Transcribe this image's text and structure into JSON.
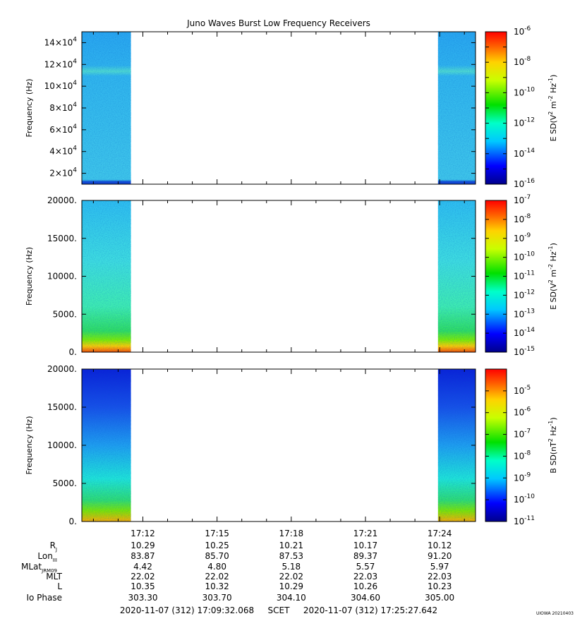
{
  "title": "Juno Waves Burst Low Frequency Receivers",
  "stamp": "UIOWA 20210403",
  "timespan": {
    "start": "2020-11-07 (312) 17:09:32.068",
    "scet": "SCET",
    "end": "2020-11-07 (312) 17:25:27.642"
  },
  "colors": {
    "low": "#0000b0",
    "mid": "#00e000",
    "high": "#ff0000"
  },
  "chart_data": [
    {
      "type": "heatmap",
      "ylabel": "Frequency (Hz)",
      "ylim": [
        10000,
        150000
      ],
      "yticks": [
        {
          "value": 20000,
          "mant": "2",
          "exp": "4"
        },
        {
          "value": 40000,
          "mant": "4",
          "exp": "4"
        },
        {
          "value": 60000,
          "mant": "6",
          "exp": "4"
        },
        {
          "value": 80000,
          "mant": "8",
          "exp": "4"
        },
        {
          "value": 100000,
          "mant": "10",
          "exp": "4"
        },
        {
          "value": 120000,
          "mant": "12",
          "exp": "4"
        },
        {
          "value": 140000,
          "mant": "14",
          "exp": "4"
        }
      ],
      "colorbar": {
        "label": "E SD (V² m⁻² Hz⁻¹)",
        "label_base": "E SD(V",
        "label_unit": "m",
        "label_tail": "Hz",
        "label_exp1": "2",
        "label_exp2": "-2",
        "label_exp3": "-1",
        "range_exp": [
          -16,
          -6
        ],
        "ticks": [
          -6,
          -8,
          -10,
          -12,
          -14,
          -16
        ]
      },
      "data_spans": [
        [
          "17:09:32",
          "17:11:31"
        ],
        [
          "17:23:56",
          "17:25:27"
        ]
      ]
    },
    {
      "type": "heatmap",
      "ylabel": "Frequency (Hz)",
      "ylim": [
        0,
        20000
      ],
      "yticks": [
        {
          "value": 0,
          "label": "0."
        },
        {
          "value": 5000,
          "label": "5000."
        },
        {
          "value": 10000,
          "label": "10000."
        },
        {
          "value": 15000,
          "label": "15000."
        },
        {
          "value": 20000,
          "label": "20000."
        }
      ],
      "colorbar": {
        "label": "E SD (V² m⁻² Hz⁻¹)",
        "label_base": "E SD(V",
        "label_unit": "m",
        "label_tail": "Hz",
        "label_exp1": "2",
        "label_exp2": "-2",
        "label_exp3": "-1",
        "range_exp": [
          -15,
          -7
        ],
        "ticks": [
          -7,
          -8,
          -9,
          -10,
          -11,
          -12,
          -13,
          -14,
          -15
        ]
      },
      "data_spans": [
        [
          "17:09:32",
          "17:11:31"
        ],
        [
          "17:23:56",
          "17:25:27"
        ]
      ]
    },
    {
      "type": "heatmap",
      "ylabel": "Frequency (Hz)",
      "ylim": [
        0,
        20000
      ],
      "yticks": [
        {
          "value": 0,
          "label": "0."
        },
        {
          "value": 5000,
          "label": "5000."
        },
        {
          "value": 10000,
          "label": "10000."
        },
        {
          "value": 15000,
          "label": "15000."
        },
        {
          "value": 20000,
          "label": "20000."
        }
      ],
      "colorbar": {
        "label": "B SD (nT² Hz⁻¹)",
        "label_base": "B SD(nT",
        "label_unit": "",
        "label_tail": "Hz",
        "label_exp1": "2",
        "label_exp2": "",
        "label_exp3": "-1",
        "range_exp": [
          -11,
          -4
        ],
        "ticks": [
          -5,
          -6,
          -7,
          -8,
          -9,
          -10,
          -11
        ]
      },
      "data_spans": [
        [
          "17:09:32",
          "17:11:31"
        ],
        [
          "17:23:56",
          "17:25:27"
        ]
      ]
    }
  ],
  "x_axis": {
    "range": [
      "17:09:32",
      "17:25:27"
    ],
    "major_ticks": [
      "17:12",
      "17:15",
      "17:18",
      "17:21",
      "17:24"
    ]
  },
  "ephemeris": [
    {
      "name": "R",
      "sub": "J",
      "values": [
        "10.29",
        "10.25",
        "10.21",
        "10.17",
        "10.12"
      ]
    },
    {
      "name": "Lon",
      "sub": "III",
      "values": [
        "83.87",
        "85.70",
        "87.53",
        "89.37",
        "91.20"
      ]
    },
    {
      "name": "MLat",
      "sub": "JRM09",
      "values": [
        "4.42",
        "4.80",
        "5.18",
        "5.57",
        "5.97"
      ]
    },
    {
      "name": "MLT",
      "sub": "",
      "values": [
        "22.02",
        "22.02",
        "22.02",
        "22.03",
        "22.03"
      ]
    },
    {
      "name": "L",
      "sub": "",
      "values": [
        "10.35",
        "10.32",
        "10.29",
        "10.26",
        "10.23"
      ]
    },
    {
      "name": "Io Phase",
      "sub": "",
      "values": [
        "303.30",
        "303.70",
        "304.10",
        "304.60",
        "305.00"
      ]
    }
  ]
}
